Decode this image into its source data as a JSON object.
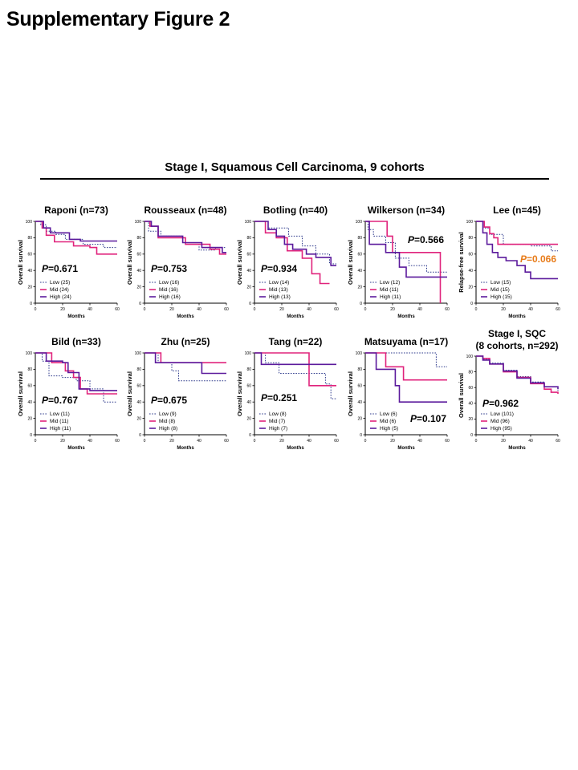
{
  "figure_title": "Supplementary Figure 2",
  "panel_title": "Stage I, Squamous Cell Carcinoma, 9 cohorts",
  "colors": {
    "low": "#2e3a8c",
    "mid": "#e0237c",
    "high": "#5b1a9c",
    "pvalue": "#000000",
    "pvalue_highlight": "#e87c1a"
  },
  "chart_data": [
    {
      "type": "line",
      "title": "Raponi (n=73)",
      "ylabel": "Overall survival",
      "xlabel": "Months",
      "xlim": [
        0,
        60
      ],
      "ylim": [
        0,
        100
      ],
      "xticks": [
        0,
        20,
        40,
        60
      ],
      "yticks": [
        0,
        20,
        40,
        60,
        80,
        100
      ],
      "pvalue_prefix": "P",
      "pvalue": "=0.671",
      "pvalue_color": "#000000",
      "pvalue_pos": "mid-left",
      "series": [
        {
          "name": "Low (25)",
          "style": "dotted",
          "color": "#2e3a8c",
          "x": [
            0,
            4,
            8,
            15,
            22,
            35,
            50,
            60
          ],
          "y": [
            100,
            96,
            88,
            84,
            78,
            72,
            68,
            68
          ]
        },
        {
          "name": "Mid (24)",
          "style": "solid",
          "color": "#e0237c",
          "x": [
            0,
            5,
            8,
            14,
            28,
            40,
            45,
            60
          ],
          "y": [
            100,
            92,
            83,
            75,
            70,
            68,
            60,
            60
          ]
        },
        {
          "name": "High (24)",
          "style": "solid",
          "color": "#5b1a9c",
          "x": [
            0,
            6,
            11,
            25,
            33,
            60
          ],
          "y": [
            100,
            92,
            86,
            78,
            76,
            76
          ]
        }
      ]
    },
    {
      "type": "line",
      "title": "Rousseaux (n=48)",
      "ylabel": "Overall survival",
      "xlabel": "Months",
      "xlim": [
        0,
        60
      ],
      "ylim": [
        0,
        100
      ],
      "xticks": [
        0,
        20,
        40,
        60
      ],
      "yticks": [
        0,
        20,
        40,
        60,
        80,
        100
      ],
      "pvalue_prefix": "P",
      "pvalue": "=0.753",
      "pvalue_color": "#000000",
      "pvalue_pos": "mid-left",
      "series": [
        {
          "name": "Low (16)",
          "style": "dotted",
          "color": "#2e3a8c",
          "x": [
            0,
            3,
            12,
            28,
            40,
            52,
            60
          ],
          "y": [
            100,
            88,
            82,
            74,
            65,
            68,
            68
          ]
        },
        {
          "name": "Mid (16)",
          "style": "solid",
          "color": "#e0237c",
          "x": [
            0,
            4,
            10,
            30,
            48,
            55,
            60
          ],
          "y": [
            100,
            94,
            80,
            72,
            66,
            60,
            60
          ]
        },
        {
          "name": "High (16)",
          "style": "solid",
          "color": "#5b1a9c",
          "x": [
            0,
            5,
            10,
            28,
            42,
            57,
            60
          ],
          "y": [
            100,
            94,
            82,
            74,
            68,
            62,
            62
          ]
        }
      ]
    },
    {
      "type": "line",
      "title": "Botling (n=40)",
      "ylabel": "Overall survival",
      "xlabel": "Months",
      "xlim": [
        0,
        60
      ],
      "ylim": [
        0,
        100
      ],
      "xticks": [
        0,
        20,
        40,
        60
      ],
      "yticks": [
        0,
        20,
        40,
        60,
        80,
        100
      ],
      "pvalue_prefix": "P",
      "pvalue": "=0.934",
      "pvalue_color": "#000000",
      "pvalue_pos": "mid-left",
      "series": [
        {
          "name": "Low (14)",
          "style": "dotted",
          "color": "#2e3a8c",
          "x": [
            0,
            10,
            25,
            35,
            45,
            55,
            60
          ],
          "y": [
            100,
            92,
            82,
            70,
            60,
            48,
            48
          ]
        },
        {
          "name": "Mid (13)",
          "style": "solid",
          "color": "#e0237c",
          "x": [
            0,
            8,
            16,
            24,
            35,
            42,
            48,
            55
          ],
          "y": [
            100,
            86,
            80,
            64,
            55,
            36,
            24,
            24
          ]
        },
        {
          "name": "High (13)",
          "style": "solid",
          "color": "#5b1a9c",
          "x": [
            0,
            10,
            16,
            22,
            28,
            38,
            45,
            56,
            60
          ],
          "y": [
            100,
            90,
            82,
            72,
            66,
            60,
            56,
            46,
            46
          ]
        }
      ]
    },
    {
      "type": "line",
      "title": "Wilkerson (n=34)",
      "ylabel": "Overall survival",
      "xlabel": "Months",
      "xlim": [
        0,
        60
      ],
      "ylim": [
        0,
        100
      ],
      "xticks": [
        0,
        20,
        40,
        60
      ],
      "yticks": [
        0,
        20,
        40,
        60,
        80,
        100
      ],
      "pvalue_prefix": "P",
      "pvalue": "=0.566",
      "pvalue_color": "#000000",
      "pvalue_pos": "upper-right",
      "series": [
        {
          "name": "Low (12)",
          "style": "dotted",
          "color": "#2e3a8c",
          "x": [
            0,
            2,
            6,
            15,
            22,
            32,
            45,
            60
          ],
          "y": [
            100,
            90,
            82,
            74,
            55,
            46,
            38,
            38
          ]
        },
        {
          "name": "Mid (11)",
          "style": "solid",
          "color": "#e0237c",
          "x": [
            0,
            16,
            20,
            32,
            48,
            55
          ],
          "y": [
            100,
            82,
            62,
            62,
            62,
            0
          ]
        },
        {
          "name": "High (11)",
          "style": "solid",
          "color": "#5b1a9c",
          "x": [
            0,
            3,
            15,
            25,
            30,
            60
          ],
          "y": [
            100,
            72,
            62,
            44,
            32,
            32
          ]
        }
      ]
    },
    {
      "type": "line",
      "title": "Lee (n=45)",
      "ylabel": "Relapse-free survival",
      "xlabel": "Months",
      "xlim": [
        0,
        60
      ],
      "ylim": [
        0,
        100
      ],
      "xticks": [
        0,
        20,
        40,
        60
      ],
      "yticks": [
        0,
        20,
        40,
        60,
        80,
        100
      ],
      "pvalue_prefix": "P",
      "pvalue": "=0.066",
      "pvalue_color": "#e87c1a",
      "pvalue_pos": "mid-right",
      "series": [
        {
          "name": "Low (15)",
          "style": "dotted",
          "color": "#2e3a8c",
          "x": [
            0,
            5,
            10,
            20,
            40,
            55,
            60
          ],
          "y": [
            100,
            92,
            84,
            72,
            70,
            64,
            64
          ]
        },
        {
          "name": "Mid (15)",
          "style": "solid",
          "color": "#e0237c",
          "x": [
            0,
            6,
            10,
            13,
            16,
            60
          ],
          "y": [
            100,
            93,
            85,
            80,
            72,
            72
          ]
        },
        {
          "name": "High (15)",
          "style": "solid",
          "color": "#5b1a9c",
          "x": [
            0,
            5,
            8,
            12,
            16,
            22,
            30,
            36,
            40,
            60
          ],
          "y": [
            100,
            86,
            72,
            62,
            56,
            52,
            46,
            38,
            30,
            30
          ]
        }
      ]
    },
    {
      "type": "line",
      "title": "Bild (n=33)",
      "ylabel": "Overall survival",
      "xlabel": "Months",
      "xlim": [
        0,
        60
      ],
      "ylim": [
        0,
        100
      ],
      "xticks": [
        0,
        20,
        40,
        60
      ],
      "yticks": [
        0,
        20,
        40,
        60,
        80,
        100
      ],
      "pvalue_prefix": "P",
      "pvalue": "=0.767",
      "pvalue_color": "#000000",
      "pvalue_pos": "mid-left",
      "series": [
        {
          "name": "Low (11)",
          "style": "dotted",
          "color": "#2e3a8c",
          "x": [
            0,
            5,
            10,
            20,
            30,
            40,
            50,
            60
          ],
          "y": [
            100,
            90,
            72,
            70,
            66,
            56,
            40,
            40
          ]
        },
        {
          "name": "Mid (11)",
          "style": "solid",
          "color": "#e0237c",
          "x": [
            0,
            12,
            22,
            28,
            33,
            38,
            60
          ],
          "y": [
            100,
            88,
            78,
            70,
            56,
            50,
            50
          ]
        },
        {
          "name": "High (11)",
          "style": "solid",
          "color": "#5b1a9c",
          "x": [
            0,
            8,
            20,
            24,
            32,
            40,
            60
          ],
          "y": [
            100,
            90,
            88,
            76,
            56,
            54,
            54
          ]
        }
      ]
    },
    {
      "type": "line",
      "title": "Zhu (n=25)",
      "ylabel": "Overall survival",
      "xlabel": "Months",
      "xlim": [
        0,
        60
      ],
      "ylim": [
        0,
        100
      ],
      "xticks": [
        0,
        20,
        40,
        60
      ],
      "yticks": [
        0,
        20,
        40,
        60,
        80,
        100
      ],
      "pvalue_prefix": "P",
      "pvalue": "=0.675",
      "pvalue_color": "#000000",
      "pvalue_pos": "mid-left",
      "series": [
        {
          "name": "Low (9)",
          "style": "dotted",
          "color": "#2e3a8c",
          "x": [
            0,
            10,
            20,
            25,
            60
          ],
          "y": [
            100,
            88,
            78,
            66,
            66
          ]
        },
        {
          "name": "Mid (8)",
          "style": "solid",
          "color": "#e0237c",
          "x": [
            0,
            12,
            60
          ],
          "y": [
            100,
            88,
            88
          ]
        },
        {
          "name": "High (8)",
          "style": "solid",
          "color": "#5b1a9c",
          "x": [
            0,
            8,
            38,
            42,
            60
          ],
          "y": [
            100,
            88,
            88,
            75,
            75
          ]
        }
      ]
    },
    {
      "type": "line",
      "title": "Tang (n=22)",
      "ylabel": "Overall survival",
      "xlabel": "Months",
      "xlim": [
        0,
        60
      ],
      "ylim": [
        0,
        100
      ],
      "xticks": [
        0,
        20,
        40,
        60
      ],
      "yticks": [
        0,
        20,
        40,
        60,
        80,
        100
      ],
      "pvalue_prefix": "P",
      "pvalue": "=0.251",
      "pvalue_color": "#000000",
      "pvalue_pos": "mid-left",
      "series": [
        {
          "name": "Low (8)",
          "style": "dotted",
          "color": "#2e3a8c",
          "x": [
            0,
            8,
            18,
            38,
            52,
            56,
            60
          ],
          "y": [
            100,
            88,
            75,
            75,
            62,
            44,
            44
          ]
        },
        {
          "name": "Mid (7)",
          "style": "solid",
          "color": "#e0237c",
          "x": [
            0,
            40,
            60
          ],
          "y": [
            100,
            60,
            60
          ]
        },
        {
          "name": "High (7)",
          "style": "solid",
          "color": "#5b1a9c",
          "x": [
            0,
            5,
            60
          ],
          "y": [
            100,
            86,
            86
          ]
        }
      ]
    },
    {
      "type": "line",
      "title": "Matsuyama (n=17)",
      "ylabel": "Overall survival",
      "xlabel": "Months",
      "xlim": [
        0,
        60
      ],
      "ylim": [
        0,
        100
      ],
      "xticks": [
        0,
        20,
        40,
        60
      ],
      "yticks": [
        0,
        20,
        40,
        60,
        80,
        100
      ],
      "pvalue_prefix": "P",
      "pvalue": "=0.107",
      "pvalue_color": "#000000",
      "pvalue_pos": "lower-right",
      "series": [
        {
          "name": "Low (6)",
          "style": "dotted",
          "color": "#2e3a8c",
          "x": [
            0,
            52,
            60
          ],
          "y": [
            100,
            83,
            83
          ]
        },
        {
          "name": "Mid (6)",
          "style": "solid",
          "color": "#e0237c",
          "x": [
            0,
            15,
            28,
            60
          ],
          "y": [
            100,
            83,
            67,
            67
          ]
        },
        {
          "name": "High (5)",
          "style": "solid",
          "color": "#5b1a9c",
          "x": [
            0,
            8,
            22,
            25,
            60
          ],
          "y": [
            100,
            80,
            60,
            40,
            40
          ]
        }
      ]
    },
    {
      "type": "line",
      "title": "Stage I, SQC (8 cohorts, n=292)",
      "ylabel": "Overall survival",
      "xlabel": "Months",
      "xlim": [
        0,
        60
      ],
      "ylim": [
        0,
        100
      ],
      "xticks": [
        0,
        20,
        40,
        60
      ],
      "yticks": [
        0,
        20,
        40,
        60,
        80,
        100
      ],
      "pvalue_prefix": "P",
      "pvalue": "=0.962",
      "pvalue_color": "#000000",
      "pvalue_pos": "mid-left",
      "series": [
        {
          "name": "Low (101)",
          "style": "dotted",
          "color": "#2e3a8c",
          "x": [
            0,
            5,
            10,
            20,
            30,
            40,
            50,
            60
          ],
          "y": [
            100,
            96,
            91,
            82,
            74,
            67,
            61,
            56
          ]
        },
        {
          "name": "Mid (96)",
          "style": "solid",
          "color": "#e0237c",
          "x": [
            0,
            5,
            10,
            20,
            30,
            40,
            50,
            55,
            60
          ],
          "y": [
            100,
            97,
            90,
            80,
            73,
            65,
            58,
            54,
            52
          ]
        },
        {
          "name": "High (95)",
          "style": "solid",
          "color": "#5b1a9c",
          "x": [
            0,
            5,
            10,
            20,
            30,
            40,
            50,
            60
          ],
          "y": [
            100,
            95,
            90,
            81,
            72,
            66,
            61,
            58
          ]
        }
      ]
    }
  ]
}
